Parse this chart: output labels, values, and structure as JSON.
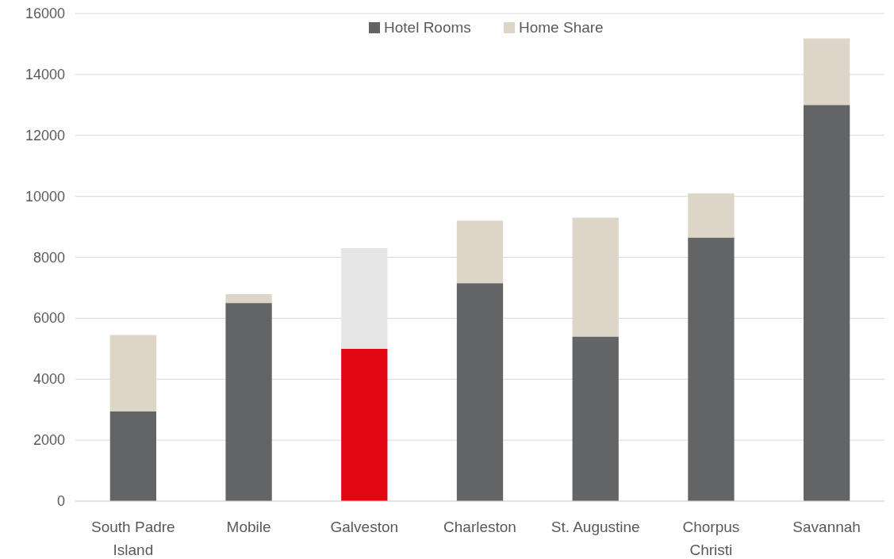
{
  "chart_data": {
    "type": "bar",
    "stacked": true,
    "categories": [
      "South Padre Island",
      "Mobile",
      "Galveston",
      "Charleston",
      "St. Augustine",
      "Chorpus Christi",
      "Savannah"
    ],
    "series": [
      {
        "name": "Hotel Rooms",
        "color": "#636466",
        "colors": [
          "#636466",
          "#636466",
          "#e30613",
          "#636466",
          "#636466",
          "#636466",
          "#636466"
        ],
        "values": [
          2950,
          6500,
          5000,
          7150,
          5400,
          8650,
          13000
        ]
      },
      {
        "name": "Home Share",
        "color": "#ddd5c7",
        "colors": [
          "#ddd5c7",
          "#ddd5c7",
          "#e6e6e6",
          "#ddd5c7",
          "#ddd5c7",
          "#ddd5c7",
          "#ddd5c7"
        ],
        "values": [
          2500,
          290,
          3300,
          2050,
          3900,
          1450,
          2180
        ]
      }
    ],
    "ylim": [
      0,
      16000
    ],
    "yticks": [
      0,
      2000,
      4000,
      6000,
      8000,
      10000,
      12000,
      14000,
      16000
    ],
    "grid": "y",
    "legend": "top"
  }
}
